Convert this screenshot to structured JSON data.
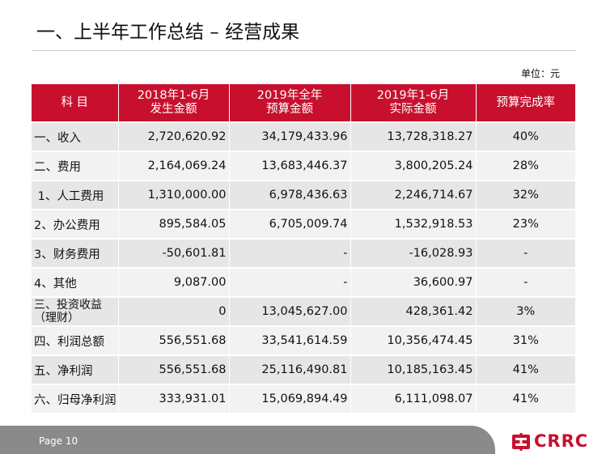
{
  "page": {
    "title": "一、上半年工作总结 – 经营成果",
    "unit": "单位：元",
    "page_label": "Page 10",
    "logo_text": "CRRC",
    "accent_color": "#c8102e"
  },
  "table": {
    "headers": [
      {
        "line1": "科 目",
        "line2": ""
      },
      {
        "line1": "2018年1-6月",
        "line2": "发生金额"
      },
      {
        "line1": "2019年全年",
        "line2": "预算金额"
      },
      {
        "line1": "2019年1-6月",
        "line2": "实际金额"
      },
      {
        "line1": "预算完成率",
        "line2": ""
      }
    ],
    "rows": [
      {
        "name": "一、收入",
        "v2018": "2,720,620.92",
        "budget": "34,179,433.96",
        "actual": "13,728,318.27",
        "rate": "40%"
      },
      {
        "name": "二、费用",
        "v2018": "2,164,069.24",
        "budget": "13,683,446.37",
        "actual": "3,800,205.24",
        "rate": "28%"
      },
      {
        "name": " 1、人工费用",
        "v2018": "1,310,000.00",
        "budget": "6,978,436.63",
        "actual": "2,246,714.67",
        "rate": "32%"
      },
      {
        "name": "2、办公费用",
        "v2018": "895,584.05",
        "budget": "6,705,009.74",
        "actual": "1,532,918.53",
        "rate": "23%"
      },
      {
        "name": "3、财务费用",
        "v2018": "-50,601.81",
        "budget": "-",
        "actual": "-16,028.93",
        "rate": "-"
      },
      {
        "name": "4、其他",
        "v2018": "9,087.00",
        "budget": "-",
        "actual": "36,600.97",
        "rate": "-"
      },
      {
        "name": "三、投资收益（理财）",
        "v2018": "0",
        "budget": "13,045,627.00",
        "actual": "428,361.42",
        "rate": "3%"
      },
      {
        "name": "四、利润总额",
        "v2018": "556,551.68",
        "budget": "33,541,614.59",
        "actual": "10,356,474.45",
        "rate": "31%"
      },
      {
        "name": "五、净利润",
        "v2018": "556,551.68",
        "budget": "25,116,490.81",
        "actual": "10,185,163.45",
        "rate": "41%"
      },
      {
        "name": "六、归母净利润",
        "v2018": "333,931.01",
        "budget": "15,069,894.49",
        "actual": "6,111,098.07",
        "rate": "41%"
      }
    ]
  }
}
